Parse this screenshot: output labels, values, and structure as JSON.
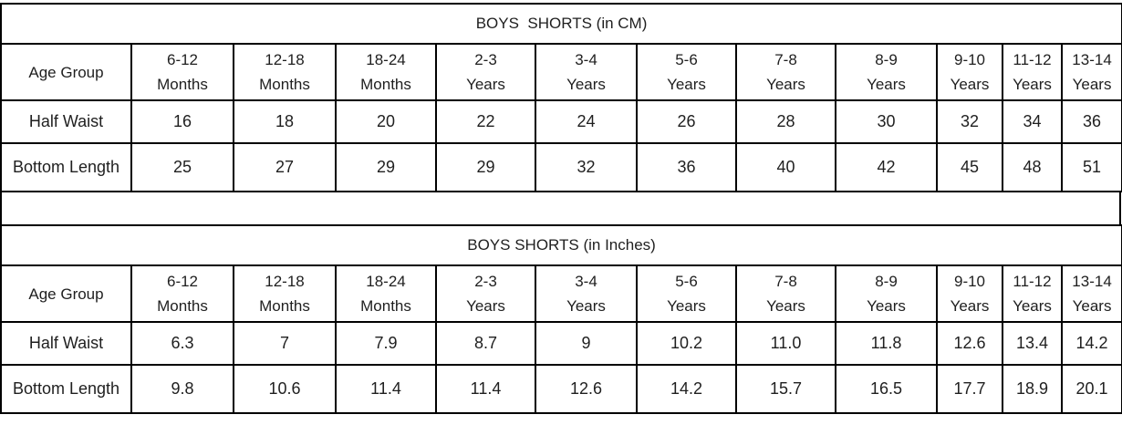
{
  "page": {
    "background_color": "#ffffff",
    "border_color": "#000000",
    "text_color": "#1f1f1f"
  },
  "tables": [
    {
      "id": "cm",
      "title": "BOYS  SHORTS (in CM)",
      "header_label": "Age Group",
      "age_groups": [
        {
          "line1": "6-12",
          "line2": "Months"
        },
        {
          "line1": "12-18",
          "line2": "Months"
        },
        {
          "line1": "18-24",
          "line2": "Months"
        },
        {
          "line1": "2-3",
          "line2": "Years"
        },
        {
          "line1": "3-4",
          "line2": "Years"
        },
        {
          "line1": "5-6",
          "line2": "Years"
        },
        {
          "line1": "7-8",
          "line2": "Years"
        },
        {
          "line1": "8-9",
          "line2": "Years"
        },
        {
          "line1": "9-10",
          "line2": "Years"
        },
        {
          "line1": "11-12",
          "line2": "Years"
        },
        {
          "line1": "13-14",
          "line2": "Years"
        }
      ],
      "rows": [
        {
          "label": "Half Waist",
          "values": [
            "16",
            "18",
            "20",
            "22",
            "24",
            "26",
            "28",
            "30",
            "32",
            "34",
            "36"
          ]
        },
        {
          "label": "Bottom Length",
          "values": [
            "25",
            "27",
            "29",
            "29",
            "32",
            "36",
            "40",
            "42",
            "45",
            "48",
            "51"
          ]
        }
      ]
    },
    {
      "id": "inches",
      "title": "BOYS SHORTS (in Inches)",
      "header_label": "Age Group",
      "age_groups": [
        {
          "line1": "6-12",
          "line2": "Months"
        },
        {
          "line1": "12-18",
          "line2": "Months"
        },
        {
          "line1": "18-24",
          "line2": "Months"
        },
        {
          "line1": "2-3",
          "line2": "Years"
        },
        {
          "line1": "3-4",
          "line2": "Years"
        },
        {
          "line1": "5-6",
          "line2": "Years"
        },
        {
          "line1": "7-8",
          "line2": "Years"
        },
        {
          "line1": "8-9",
          "line2": "Years"
        },
        {
          "line1": "9-10",
          "line2": "Years"
        },
        {
          "line1": "11-12",
          "line2": "Years"
        },
        {
          "line1": "13-14",
          "line2": "Years"
        }
      ],
      "rows": [
        {
          "label": "Half Waist",
          "values": [
            "6.3",
            "7",
            "7.9",
            "8.7",
            "9",
            "10.2",
            "11.0",
            "11.8",
            "12.6",
            "13.4",
            "14.2"
          ]
        },
        {
          "label": "Bottom Length",
          "values": [
            "9.8",
            "10.6",
            "11.4",
            "11.4",
            "12.6",
            "14.2",
            "15.7",
            "16.5",
            "17.7",
            "18.9",
            "20.1"
          ]
        }
      ]
    }
  ]
}
